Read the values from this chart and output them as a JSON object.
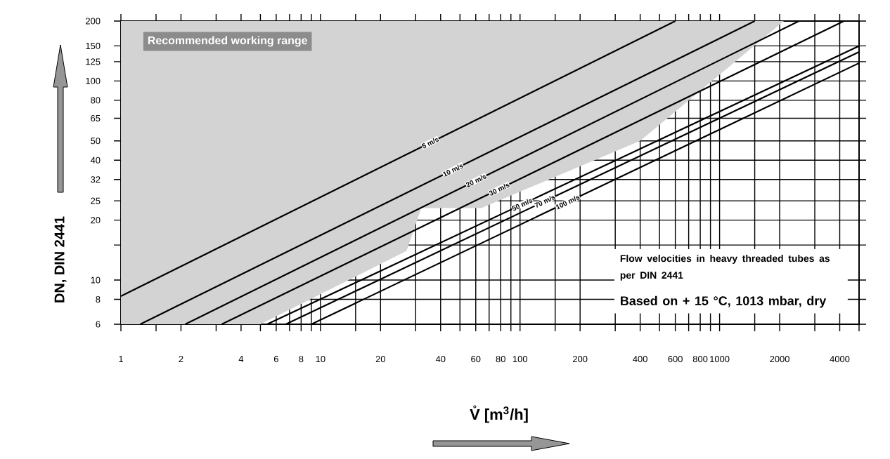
{
  "chart_data": {
    "type": "line",
    "xlabel": "V̊ [m$^{3}$/h]",
    "ylabel": "DN, DIN 2441",
    "log": "xy",
    "grid": true,
    "legend": "top left",
    "xlim": [
      1,
      5000
    ],
    "ylim": [
      6,
      200
    ],
    "xticks": [
      1,
      {
        "value": 1.5,
        "label": null
      },
      2,
      {
        "value": 3,
        "label": null
      },
      4,
      {
        "value": 5,
        "label": null
      },
      6,
      {
        "value": 7,
        "label": null
      },
      8,
      {
        "value": 9,
        "label": null
      },
      10,
      {
        "value": 15,
        "label": null
      },
      20,
      {
        "value": 30,
        "label": null
      },
      40,
      {
        "value": 50,
        "label": null
      },
      60,
      {
        "value": 70,
        "label": null
      },
      80,
      {
        "value": 90,
        "label": null
      },
      100,
      {
        "value": 150,
        "label": null
      },
      200,
      {
        "value": 300,
        "label": null
      },
      400,
      {
        "value": 500,
        "label": null
      },
      600,
      {
        "value": 700,
        "label": null
      },
      800,
      {
        "value": 900,
        "label": null
      },
      1000,
      {
        "value": 1500,
        "label": null
      },
      2000,
      {
        "value": 3000,
        "label": null
      },
      4000,
      {
        "value": 5000,
        "label": null
      }
    ],
    "yticks": [
      6,
      8,
      10,
      {
        "value": 15,
        "label": null
      },
      20,
      25,
      32,
      40,
      50,
      65,
      80,
      100,
      125,
      150,
      200
    ],
    "annotations": [
      "Flow velocities in heavy threaded tubes as per DIN 2441",
      "Based on  + 15 °C, 1013 mbar, dry"
    ],
    "series": [
      {
        "type": "area",
        "name": "Recommended working range",
        "color": "#d3d3d3",
        "x": [
          1,
          1,
          5,
          27,
          32,
          64,
          400,
          2100
        ],
        "values": [
          200,
          6,
          6,
          14,
          23,
          23,
          50,
          200
        ]
      },
      {
        "name": "5 m/s",
        "color": "#000000",
        "x": [
          1,
          600
        ],
        "values": [
          8.3,
          200
        ]
      },
      {
        "name": "10 m/s",
        "color": "#000000",
        "x": [
          1.25,
          1500
        ],
        "values": [
          6,
          200
        ]
      },
      {
        "name": "20 m/s",
        "color": "#000000",
        "x": [
          2.1,
          2500
        ],
        "values": [
          6,
          200
        ]
      },
      {
        "name": "30 m/s",
        "color": "#000000",
        "x": [
          3.2,
          4200
        ],
        "values": [
          6,
          200
        ]
      },
      {
        "name": "50 m/s",
        "color": "#000000",
        "x": [
          5.4,
          5000
        ],
        "values": [
          6,
          150
        ]
      },
      {
        "name": "70 m/s",
        "color": "#000000",
        "x": [
          6.7,
          5000
        ],
        "values": [
          6,
          140
        ]
      },
      {
        "name": "100 m/s",
        "color": "#000000",
        "x": [
          9,
          5000
        ],
        "values": [
          6,
          123
        ]
      }
    ]
  }
}
